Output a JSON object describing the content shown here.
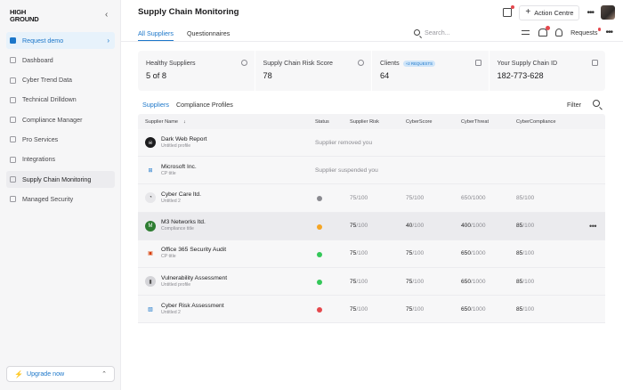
{
  "brand": {
    "logo_line1": "HIGH",
    "logo_line2": "GROUND"
  },
  "sidebar": {
    "items": [
      {
        "label": "Request demo",
        "icon": "shield-icon",
        "state": "request"
      },
      {
        "label": "Dashboard",
        "icon": "dashboard-icon",
        "state": ""
      },
      {
        "label": "Cyber Trend Data",
        "icon": "trend-icon",
        "state": ""
      },
      {
        "label": "Technical Drilldown",
        "icon": "drilldown-icon",
        "state": ""
      },
      {
        "label": "Compliance Manager",
        "icon": "compliance-icon",
        "state": ""
      },
      {
        "label": "Pro Services",
        "icon": "grid-icon",
        "state": ""
      },
      {
        "label": "Integrations",
        "icon": "integrations-icon",
        "state": ""
      },
      {
        "label": "Supply Chain Monitoring",
        "icon": "folder-icon",
        "state": "active"
      },
      {
        "label": "Managed Security",
        "icon": "lock-icon",
        "state": ""
      }
    ],
    "upgrade_label": "Upgrade now"
  },
  "header": {
    "title": "Supply Chain Monitoring",
    "action_label": "Action Centre"
  },
  "tabs": [
    {
      "label": "All Suppliers",
      "active": true
    },
    {
      "label": "Questionnaires",
      "active": false
    }
  ],
  "search": {
    "placeholder": "Search..."
  },
  "toolbar": {
    "requests_label": "Requests"
  },
  "cards": [
    {
      "label": "Healthy Suppliers",
      "value": "5 of 8",
      "badge": ""
    },
    {
      "label": "Supply Chain Risk Score",
      "value": "78",
      "badge": ""
    },
    {
      "label": "Clients",
      "value": "64",
      "badge": "+2 REQUESTS"
    },
    {
      "label": "Your Supply Chain ID",
      "value": "182-773-628",
      "badge": ""
    }
  ],
  "subtabs": [
    {
      "label": "Suppliers",
      "active": true
    },
    {
      "label": "Compliance Profiles",
      "active": false
    }
  ],
  "filter_label": "Filter",
  "table": {
    "columns": [
      "Supplier Name",
      "Status",
      "Supplier Risk",
      "CyberScore",
      "CyberThreat",
      "CyberCompliance"
    ],
    "rows": [
      {
        "name": "Dark Web Report",
        "sub": "Untitled profile",
        "message": "Supplier removed you"
      },
      {
        "name": "Microsoft Inc.",
        "sub": "CP title",
        "message": "Supplier suspended you"
      },
      {
        "name": "Cyber Care ltd.",
        "sub": "Untitled 2",
        "status": "grey",
        "risk": "75",
        "risk_total": "/100",
        "score": "75",
        "score_total": "/100",
        "threat": "650",
        "threat_total": "/1000",
        "compliance": "85",
        "compliance_total": "/100"
      },
      {
        "name": "M3 Networks ltd.",
        "sub": "Compliance title",
        "status": "orange",
        "risk": "75",
        "risk_total": "/100",
        "score": "40",
        "score_total": "/100",
        "threat": "400",
        "threat_total": "/1000",
        "compliance": "85",
        "compliance_total": "/100",
        "highlighted": true
      },
      {
        "name": "Office 365 Security Audit",
        "sub": "CP title",
        "status": "green",
        "risk": "75",
        "risk_total": "/100",
        "score": "75",
        "score_total": "/100",
        "threat": "650",
        "threat_total": "/1000",
        "compliance": "85",
        "compliance_total": "/100"
      },
      {
        "name": "Vulnerability Assessment",
        "sub": "Untitled profile",
        "status": "green",
        "risk": "75",
        "risk_total": "/100",
        "score": "75",
        "score_total": "/100",
        "threat": "650",
        "threat_total": "/1000",
        "compliance": "85",
        "compliance_total": "/100"
      },
      {
        "name": "Cyber Risk Assessment",
        "sub": "Untitled 2",
        "status": "red",
        "risk": "75",
        "risk_total": "/100",
        "score": "75",
        "score_total": "/100",
        "threat": "650",
        "threat_total": "/1000",
        "compliance": "85",
        "compliance_total": "/100"
      }
    ]
  },
  "colors": {
    "accent": "#1b76c9",
    "status_green": "#34c759",
    "status_orange": "#f5a524",
    "status_red": "#e5484d",
    "status_grey": "#8a8a90"
  }
}
